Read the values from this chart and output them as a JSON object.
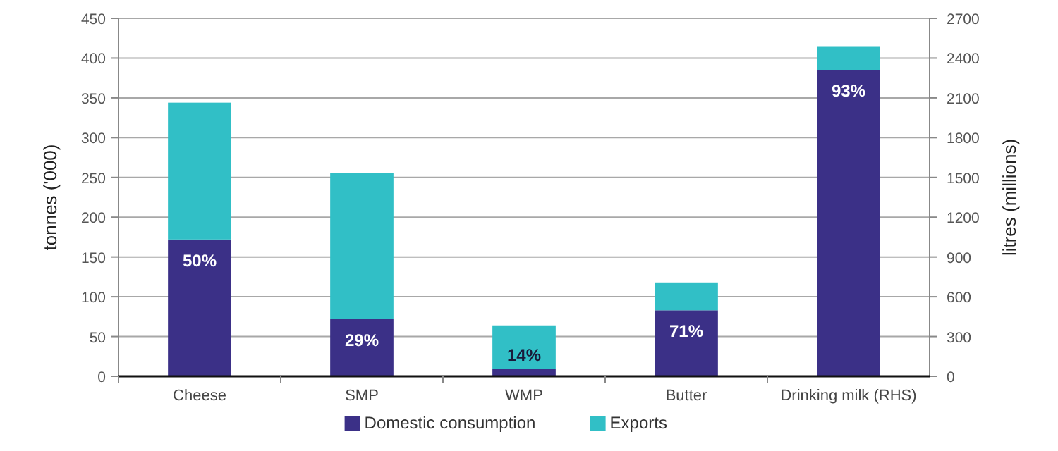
{
  "chart_data": {
    "type": "bar",
    "stacked": true,
    "categories": [
      "Cheese",
      "SMP",
      "WMP",
      "Butter",
      "Drinking milk (RHS)"
    ],
    "ylabel": "tonnes ('000)",
    "y2label": "litres (millions)",
    "ylim": [
      0,
      450
    ],
    "yticks": [
      0,
      50,
      100,
      150,
      200,
      250,
      300,
      350,
      400,
      450
    ],
    "y2lim": [
      0,
      2700
    ],
    "y2ticks": [
      0,
      300,
      600,
      900,
      1200,
      1500,
      1800,
      2100,
      2400,
      2700
    ],
    "grid": "y",
    "legend": "bottom",
    "series": [
      {
        "name": "Domestic consumption",
        "color": "#3b3087",
        "values": [
          172,
          72,
          9,
          83,
          null
        ]
      },
      {
        "name": "Exports",
        "color": "#31bfc6",
        "values": [
          172,
          184,
          55,
          35,
          null
        ]
      },
      {
        "color": "#3b3087",
        "axis": "y2",
        "values": [
          null,
          null,
          null,
          null,
          2310
        ]
      },
      {
        "color": "#31bfc6",
        "axis": "y2",
        "values": [
          null,
          null,
          null,
          null,
          180
        ]
      }
    ],
    "annotations": [
      {
        "text": "50%",
        "x": "Cheese",
        "y": 172
      },
      {
        "text": "29%",
        "x": "SMP",
        "y": 72
      },
      {
        "text": "14%",
        "x": "WMP",
        "y": 9
      },
      {
        "text": "71%",
        "x": "Butter",
        "y": 83
      },
      {
        "text": "93%",
        "x": "Drinking milk (RHS)",
        "y": 385
      }
    ]
  }
}
